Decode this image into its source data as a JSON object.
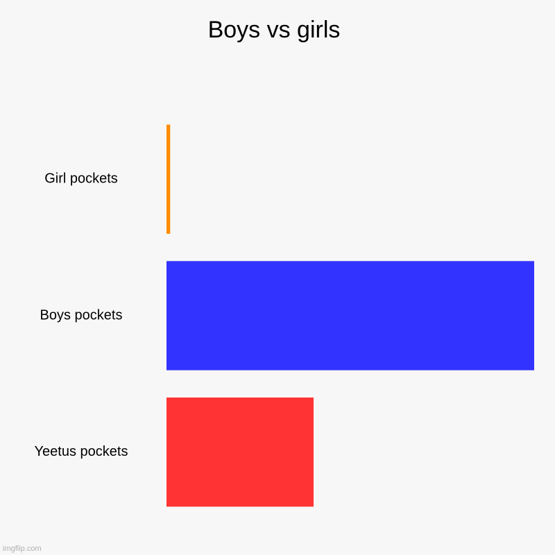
{
  "chart_data": {
    "type": "bar",
    "orientation": "horizontal",
    "title": "Boys vs girls",
    "categories": [
      "Girl pockets",
      "Boys pockets",
      "Yeetus pockets"
    ],
    "values": [
      1,
      100,
      40
    ],
    "colors": [
      "#ff8c00",
      "#3333ff",
      "#ff3333"
    ],
    "xlim": [
      0,
      100
    ],
    "xlabel": "",
    "ylabel": "",
    "grid": false,
    "legend": "none"
  },
  "watermark": "imgflip.com"
}
